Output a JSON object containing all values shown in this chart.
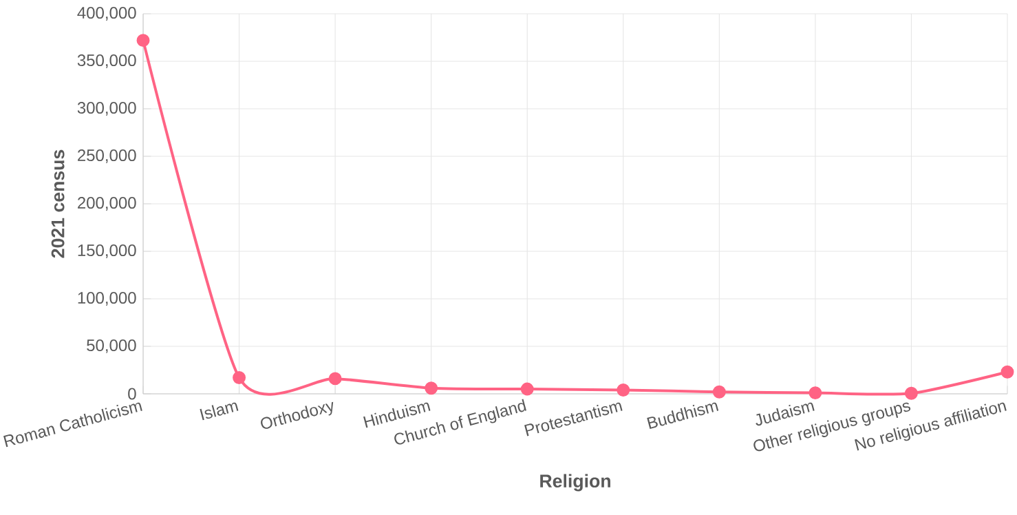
{
  "chart_data": {
    "type": "line",
    "xlabel": "Religion",
    "ylabel": "2021 census",
    "categories": [
      "Roman Catholicism",
      "Islam",
      "Orthodoxy",
      "Hinduism",
      "Church of England",
      "Protestantism",
      "Buddhism",
      "Judaism",
      "Other religious groups",
      "No religious affiliation"
    ],
    "series": [
      {
        "color": "#ff6384",
        "values": [
          372000,
          17000,
          16000,
          6000,
          5000,
          4000,
          2000,
          1000,
          500,
          23000
        ]
      }
    ],
    "ylim": [
      0,
      400000
    ],
    "yticks": [
      {
        "value": 0,
        "label": "0"
      },
      {
        "value": 50000,
        "label": "50,000"
      },
      {
        "value": 100000,
        "label": "100,000"
      },
      {
        "value": 150000,
        "label": "150,000"
      },
      {
        "value": 200000,
        "label": "200,000"
      },
      {
        "value": 250000,
        "label": "250,000"
      },
      {
        "value": 300000,
        "label": "300,000"
      },
      {
        "value": 350000,
        "label": "350,000"
      },
      {
        "value": 400000,
        "label": "400,000"
      }
    ],
    "grid": true,
    "marker": "circle",
    "line_style": "solid"
  }
}
